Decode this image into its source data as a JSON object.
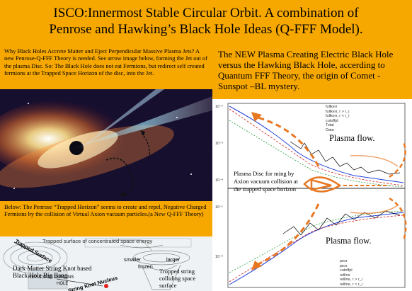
{
  "title": {
    "line1": "ISCO:Innermost Stable Circular Orbit. A combination of",
    "line2": "Penrose and Hawking’s Black Hole Ideas (Q-FFF Model)."
  },
  "left_top_text": "Why Black Holes Accrete Matter and Eject Perpendicular Massive Plasma Jets? A new Penrose-Q-FFF Theory is needed. See arrow image below, forming the Jet out of the plasma Disc. So: The Black Hole does not eat Fermions, but redirect self created fermions at the Trapped Space Horizon of the disc, into the Jet.",
  "left_mid_text": "Below: The Penrose “Trapped Horizon” seems to create and repel, Negative Charged Fermions by the collision of Virtual Axion vacuum particles.(a New Q-FFF Theory)",
  "diagram_labels": {
    "trapped_surface": "Trapped surface of concentrated space energy",
    "trapped_surfaces": "Trapped Surface",
    "smaller": "smaller",
    "larger": "larger",
    "frozen": "frozen",
    "dark_matter": "Dark Matter String Knot based Black Hole Big Bang",
    "colliding": "Tropped string colliding space surface",
    "nucleus": "String Knot Nucleus",
    "repulsion": "REPULSION DOMAINS",
    "hole": "HOLE"
  },
  "right_top_text": "The NEW Plasma Creating Electric Black Hole versus the Hawking Black Hole, accerding to Quantum FFF Theory, the origin of Comet - Sunspot –BL mystery.",
  "plot": {
    "plasma_flow_top": "Plasma flow.",
    "plasma_flow_bottom": "Plasma flow.",
    "plasma_disc": "Plasma Disc for ming by Axion vacuum collision at the trapped space horizon",
    "legend_top": [
      "fullkerr",
      "fullkerr, r > r_i",
      "fullkerr, r < r_i",
      "cutoffpl",
      "Total",
      "Data"
    ],
    "legend_bottom": [
      "pexr",
      "pexr",
      "cutoffpl",
      "relline",
      "relline, r > r_i",
      "relline, r < r_i"
    ],
    "ytick_top": [
      "10⁻²",
      "10⁻³",
      "10⁻⁴"
    ],
    "ytick_bottom": [
      "10⁻¹",
      "10⁻²"
    ]
  },
  "colors": {
    "accent_orange": "#f7a800",
    "arrow_orange": "#e87722",
    "plot_blue": "#1f3fd8",
    "plot_red": "#d42020",
    "plot_green": "#2ea043"
  }
}
